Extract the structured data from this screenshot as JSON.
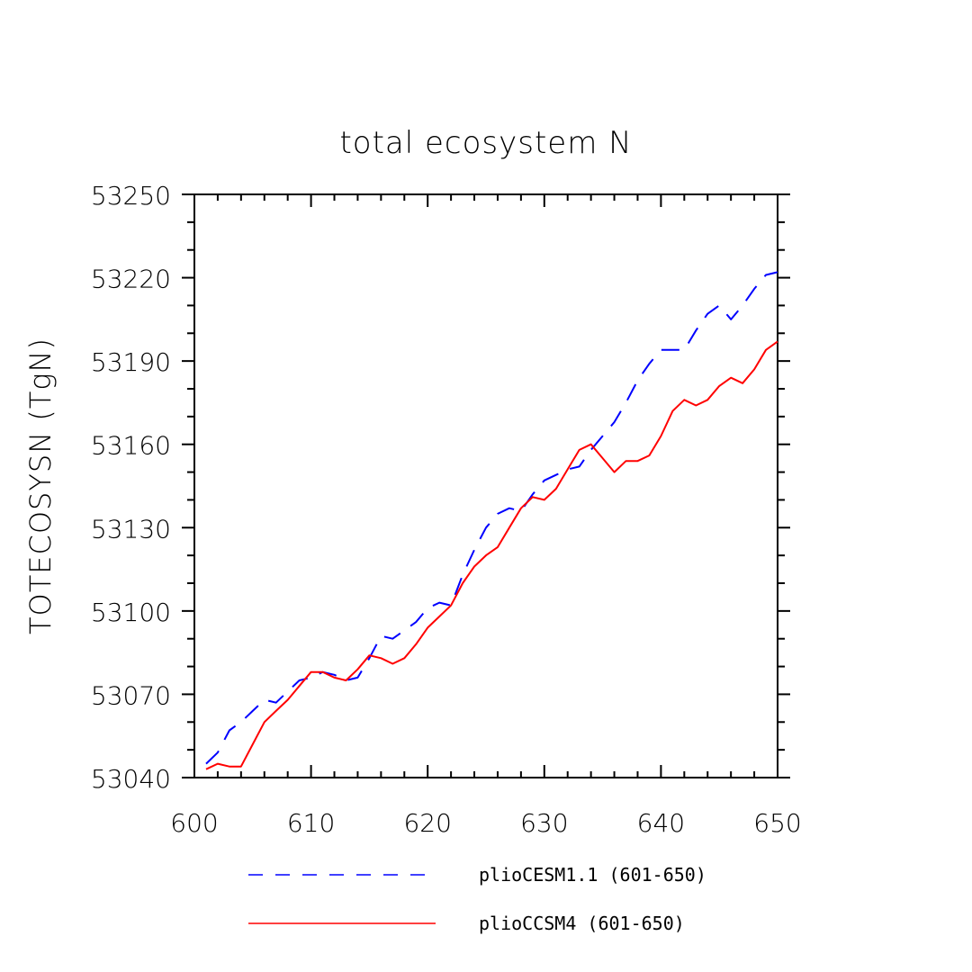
{
  "chart_data": {
    "type": "line",
    "title": "total ecosystem N",
    "xlabel": "",
    "ylabel": "TOTECOSYSN   (TgN)",
    "xlim": [
      600,
      650
    ],
    "ylim": [
      53040,
      53250
    ],
    "xticks": [
      600,
      610,
      620,
      630,
      640,
      650
    ],
    "yticks": [
      53040,
      53070,
      53100,
      53130,
      53160,
      53190,
      53220,
      53250
    ],
    "legend_position": "bottom",
    "x": [
      601,
      602,
      603,
      604,
      605,
      606,
      607,
      608,
      609,
      610,
      611,
      612,
      613,
      614,
      615,
      616,
      617,
      618,
      619,
      620,
      621,
      622,
      623,
      624,
      625,
      626,
      627,
      628,
      629,
      630,
      631,
      632,
      633,
      634,
      635,
      636,
      637,
      638,
      639,
      640,
      641,
      642,
      643,
      644,
      645,
      646,
      647,
      648,
      649,
      650
    ],
    "series": [
      {
        "name": "plioCESM1.1 (601-650)",
        "color": "#0000ff",
        "dash": "dashed",
        "values": [
          53045,
          53049,
          53057,
          53060,
          53064,
          53068,
          53067,
          53071,
          53075,
          53076,
          53078,
          53077,
          53075,
          53076,
          53083,
          53091,
          53090,
          53093,
          53096,
          53101,
          53103,
          53102,
          53113,
          53122,
          53130,
          53135,
          53137,
          53136,
          53142,
          53147,
          53149,
          53151,
          53152,
          53158,
          53163,
          53168,
          53175,
          53183,
          53189,
          53194,
          53194,
          53194,
          53201,
          53207,
          53210,
          53205,
          53210,
          53216,
          53221,
          53222
        ]
      },
      {
        "name": "plioCCSM4 (601-650)",
        "color": "#ff0000",
        "dash": "solid",
        "values": [
          53043,
          53045,
          53044,
          53044,
          53052,
          53060,
          53064,
          53068,
          53073,
          53078,
          53078,
          53076,
          53075,
          53079,
          53084,
          53083,
          53081,
          53083,
          53088,
          53094,
          53098,
          53102,
          53110,
          53116,
          53120,
          53123,
          53130,
          53137,
          53141,
          53140,
          53144,
          53151,
          53158,
          53160,
          53155,
          53150,
          53154,
          53154,
          53156,
          53163,
          53172,
          53176,
          53174,
          53176,
          53181,
          53184,
          53182,
          53187,
          53194,
          53197
        ]
      }
    ]
  }
}
